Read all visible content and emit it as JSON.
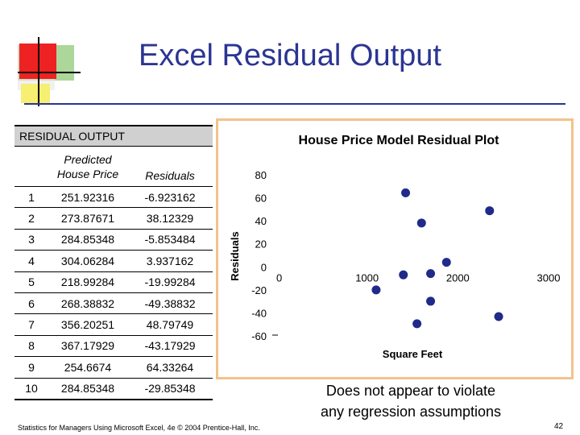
{
  "slide": {
    "title": "Excel Residual Output",
    "note_line1": "Does not appear to violate",
    "note_line2": "any regression assumptions",
    "footer": "Statistics for Managers Using Microsoft Excel, 4e © 2004 Prentice-Hall, Inc.",
    "page_number": "42"
  },
  "table": {
    "header": "RESIDUAL OUTPUT",
    "col_predicted_line1": "Predicted",
    "col_predicted_line2": "House Price",
    "col_residuals": "Residuals",
    "rows": [
      {
        "obs": "1",
        "predicted": "251.92316",
        "residual": "-6.923162"
      },
      {
        "obs": "2",
        "predicted": "273.87671",
        "residual": "38.12329"
      },
      {
        "obs": "3",
        "predicted": "284.85348",
        "residual": "-5.853484"
      },
      {
        "obs": "4",
        "predicted": "304.06284",
        "residual": "3.937162"
      },
      {
        "obs": "5",
        "predicted": "218.99284",
        "residual": "-19.99284"
      },
      {
        "obs": "6",
        "predicted": "268.38832",
        "residual": "-49.38832"
      },
      {
        "obs": "7",
        "predicted": "356.20251",
        "residual": "48.79749"
      },
      {
        "obs": "8",
        "predicted": "367.17929",
        "residual": "-43.17929"
      },
      {
        "obs": "9",
        "predicted": "254.6674",
        "residual": "64.33264"
      },
      {
        "obs": "10",
        "predicted": "284.85348",
        "residual": "-29.85348"
      }
    ]
  },
  "colors": {
    "title": "#2b3593",
    "marker": "#1f2a8a",
    "chart_border": "#f2c28c",
    "header_fill": "#d0d0d0"
  },
  "chart_data": {
    "type": "scatter",
    "title": "House Price Model Residual Plot",
    "xlabel": "Square Feet",
    "ylabel": "Residuals",
    "xlim": [
      0,
      3000
    ],
    "ylim": [
      -60,
      80
    ],
    "xticks": [
      "0",
      "1000",
      "2000",
      "3000"
    ],
    "yticks": [
      "80",
      "60",
      "40",
      "20",
      "0",
      "-20",
      "-40",
      "-60"
    ],
    "grid": false,
    "legend": "none",
    "x": [
      1400,
      1600,
      1700,
      1875,
      1100,
      1550,
      2350,
      2450,
      1425,
      1700
    ],
    "y": [
      -6.923162,
      38.12329,
      -5.853484,
      3.937162,
      -19.99284,
      -49.38832,
      48.79749,
      -43.17929,
      64.33264,
      -29.85348
    ]
  }
}
